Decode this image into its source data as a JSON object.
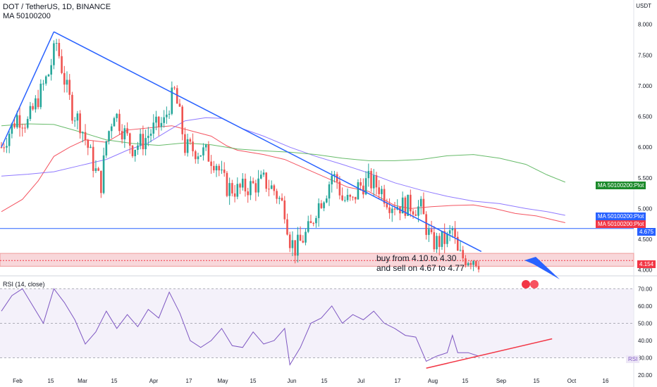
{
  "header": {
    "symbol_line": "DOT / TetherUS, 1D, BINANCE",
    "indicator_line": "MA 50100200",
    "currency": "USDT"
  },
  "annotation": {
    "line1": "buy from 4.10 to 4.30",
    "line2": "and sell on 4.67 to 4.77"
  },
  "colors": {
    "up": "#26a69a",
    "down": "#ef5350",
    "trendline": "#2962ff",
    "ma50": "#f23645",
    "ma100": "#7b61ff",
    "ma200": "#4caf50",
    "rsi": "#7e57c2",
    "resistance": "#2962ff",
    "support_zone": "#f8d7da"
  },
  "chart_data": [
    {
      "type": "candlestick",
      "title": "DOT / TetherUS, 1D, BINANCE",
      "ylim": [
        3.95,
        8.1
      ],
      "y_ticks": [
        4.0,
        4.5,
        5.0,
        5.5,
        6.0,
        6.5,
        7.0,
        7.5,
        8.0
      ],
      "y_tick_labels": [
        "4.000",
        "4.500",
        "5.000",
        "5.500",
        "6.000",
        "6.500",
        "7.000",
        "7.500",
        "8.000"
      ],
      "x_tick_labels": [
        "Feb",
        "15",
        "Mar",
        "15",
        "Apr",
        "17",
        "May",
        "15",
        "Jun",
        "15",
        "Jul",
        "17",
        "Aug",
        "15",
        "Sep",
        "15",
        "Oct",
        "16"
      ],
      "price_labels": [
        {
          "value": 4.675,
          "text": "4.675"
        },
        {
          "value": 4.154,
          "text": "4.154"
        }
      ],
      "ma_tags": [
        {
          "text": "MA 50100200:Plot",
          "value": 5.43
        },
        {
          "text": "MA 50100200:Plot",
          "value": 4.89
        },
        {
          "text": "MA 50100200:Plot",
          "value": 4.77
        }
      ],
      "series": [
        {
          "name": "MA 50100200",
          "points": [
            [
              0,
              4.95
            ],
            [
              8,
              5.15
            ],
            [
              14,
              5.45
            ],
            [
              20,
              5.85
            ],
            [
              26,
              6.0
            ],
            [
              32,
              6.12
            ],
            [
              40,
              6.08
            ],
            [
              48,
              6.28
            ],
            [
              60,
              6.33
            ],
            [
              65,
              6.35
            ],
            [
              72,
              6.27
            ],
            [
              80,
              6.18
            ],
            [
              86,
              6.02
            ],
            [
              90,
              5.95
            ],
            [
              100,
              5.88
            ],
            [
              108,
              5.8
            ],
            [
              116,
              5.65
            ],
            [
              124,
              5.5
            ],
            [
              132,
              5.35
            ],
            [
              140,
              5.28
            ],
            [
              150,
              5.05
            ],
            [
              156,
              5.0
            ],
            [
              164,
              5.03
            ],
            [
              172,
              5.05
            ],
            [
              180,
              5.06
            ],
            [
              188,
              5.0
            ],
            [
              196,
              4.92
            ],
            [
              204,
              4.88
            ],
            [
              210,
              4.82
            ],
            [
              215,
              4.77
            ]
          ]
        },
        {
          "name": "MA 50100200",
          "points": [
            [
              0,
              5.53
            ],
            [
              10,
              5.56
            ],
            [
              20,
              5.6
            ],
            [
              30,
              5.7
            ],
            [
              40,
              5.8
            ],
            [
              48,
              5.95
            ],
            [
              56,
              6.07
            ],
            [
              64,
              6.28
            ],
            [
              70,
              6.43
            ],
            [
              78,
              6.48
            ],
            [
              84,
              6.47
            ],
            [
              92,
              6.3
            ],
            [
              100,
              6.18
            ],
            [
              110,
              6.0
            ],
            [
              120,
              5.85
            ],
            [
              130,
              5.72
            ],
            [
              140,
              5.58
            ],
            [
              150,
              5.42
            ],
            [
              160,
              5.3
            ],
            [
              170,
              5.2
            ],
            [
              180,
              5.12
            ],
            [
              190,
              5.08
            ],
            [
              200,
              5.0
            ],
            [
              208,
              4.95
            ],
            [
              215,
              4.89
            ]
          ]
        },
        {
          "name": "MA 50100200",
          "points": [
            [
              0,
              6.35
            ],
            [
              10,
              6.38
            ],
            [
              20,
              6.37
            ],
            [
              30,
              6.25
            ],
            [
              40,
              6.12
            ],
            [
              50,
              6.06
            ],
            [
              60,
              6.03
            ],
            [
              70,
              6.07
            ],
            [
              80,
              6.04
            ],
            [
              90,
              5.97
            ],
            [
              100,
              5.94
            ],
            [
              110,
              5.92
            ],
            [
              120,
              5.88
            ],
            [
              130,
              5.82
            ],
            [
              140,
              5.78
            ],
            [
              150,
              5.78
            ],
            [
              160,
              5.8
            ],
            [
              170,
              5.86
            ],
            [
              180,
              5.88
            ],
            [
              190,
              5.82
            ],
            [
              200,
              5.72
            ],
            [
              208,
              5.55
            ],
            [
              215,
              5.43
            ]
          ]
        }
      ],
      "trendlines": [
        {
          "from": [
            0,
            6.0
          ],
          "to": [
            20,
            7.88
          ]
        },
        {
          "from": [
            20,
            7.88
          ],
          "to": [
            183,
            4.3
          ]
        }
      ],
      "horizontal_lines": [
        {
          "value": 4.675
        }
      ],
      "zone": {
        "from": 4.06,
        "to": 4.27
      }
    },
    {
      "type": "line",
      "title": "RSI (14, close)",
      "ylim": [
        18,
        75
      ],
      "y_ticks": [
        20,
        30,
        40,
        50,
        60,
        70
      ],
      "y_tick_labels": [
        "20.00",
        "30.00",
        "40.00",
        "50.00",
        "60.00",
        "70.00"
      ],
      "bands": {
        "upper": 70,
        "middle": 50,
        "lower": 30
      },
      "series": [
        {
          "name": "RSI",
          "points": [
            [
              0,
              57
            ],
            [
              4,
              66
            ],
            [
              8,
              70
            ],
            [
              12,
              60
            ],
            [
              16,
              50
            ],
            [
              20,
              70
            ],
            [
              24,
              62
            ],
            [
              28,
              52
            ],
            [
              32,
              38
            ],
            [
              36,
              45
            ],
            [
              40,
              57
            ],
            [
              44,
              47
            ],
            [
              48,
              55
            ],
            [
              52,
              48
            ],
            [
              56,
              58
            ],
            [
              60,
              53
            ],
            [
              64,
              68
            ],
            [
              68,
              56
            ],
            [
              72,
              40
            ],
            [
              76,
              36
            ],
            [
              80,
              40
            ],
            [
              84,
              47
            ],
            [
              88,
              37
            ],
            [
              92,
              36
            ],
            [
              96,
              45
            ],
            [
              100,
              38
            ],
            [
              104,
              40
            ],
            [
              108,
              47
            ],
            [
              110,
              26
            ],
            [
              114,
              36
            ],
            [
              118,
              50
            ],
            [
              122,
              53
            ],
            [
              126,
              60
            ],
            [
              130,
              50
            ],
            [
              134,
              55
            ],
            [
              138,
              52
            ],
            [
              142,
              57
            ],
            [
              146,
              50
            ],
            [
              150,
              47
            ],
            [
              154,
              43
            ],
            [
              158,
              42
            ],
            [
              162,
              28
            ],
            [
              166,
              31
            ],
            [
              170,
              33
            ],
            [
              172,
              43
            ],
            [
              174,
              33
            ],
            [
              178,
              33
            ],
            [
              182,
              31
            ]
          ]
        },
        {
          "name": "RSI trendline",
          "points": [
            [
              162,
              24
            ],
            [
              210,
              41
            ]
          ]
        }
      ]
    }
  ],
  "rsi_tag": "RSI"
}
